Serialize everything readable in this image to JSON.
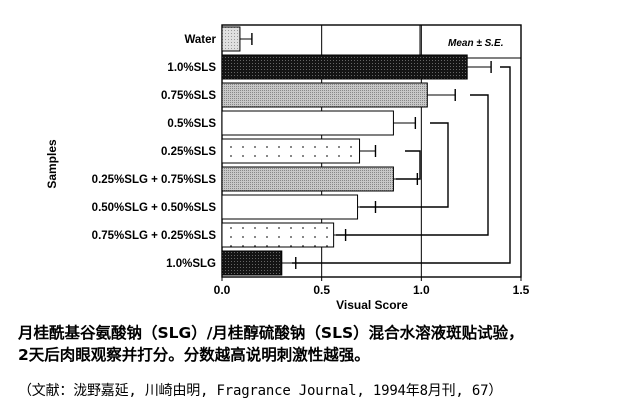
{
  "chart_data": {
    "type": "bar",
    "orientation": "horizontal",
    "ylabel": "Samples",
    "xlabel": "Visual Score",
    "legend": "Mean ± S.E.",
    "xlim": [
      0,
      1.5
    ],
    "xticks": [
      "0.0",
      "0.5",
      "1.0",
      "1.5"
    ],
    "grid": "vertical at 0.5 and 1.0",
    "categories": [
      "Water",
      "1.0%SLS",
      "0.75%SLS",
      "0.5%SLS",
      "0.25%SLS",
      "0.25%SLG + 0.75%SLS",
      "0.50%SLG + 0.50%SLS",
      "0.75%SLG + 0.25%SLS",
      "1.0%SLG"
    ],
    "values": [
      0.09,
      1.23,
      1.03,
      0.86,
      0.69,
      0.86,
      0.68,
      0.56,
      0.3
    ],
    "errors": [
      0.06,
      0.12,
      0.14,
      0.11,
      0.08,
      0.12,
      0.09,
      0.06,
      0.07
    ],
    "fills": [
      "light-shade",
      "dark",
      "medium-shade",
      "white",
      "dotted",
      "medium-shade",
      "white",
      "dotted",
      "dark"
    ]
  },
  "caption": {
    "line1": "月桂酰基谷氨酸钠（SLG）/月桂醇硫酸钠（SLS）混合水溶液斑贴试验，",
    "line2": "2天后肉眼观察并打分。分数越高说明刺激性越强。",
    "source": "（文献：泷野嘉延, 川崎由明, Fragrance Journal, 1994年8月刊, 67）"
  },
  "colors": {
    "dark": "#1a1a1a",
    "shade": "#b8b8b8",
    "light": "#d6d6d6",
    "axis": "#000000"
  }
}
